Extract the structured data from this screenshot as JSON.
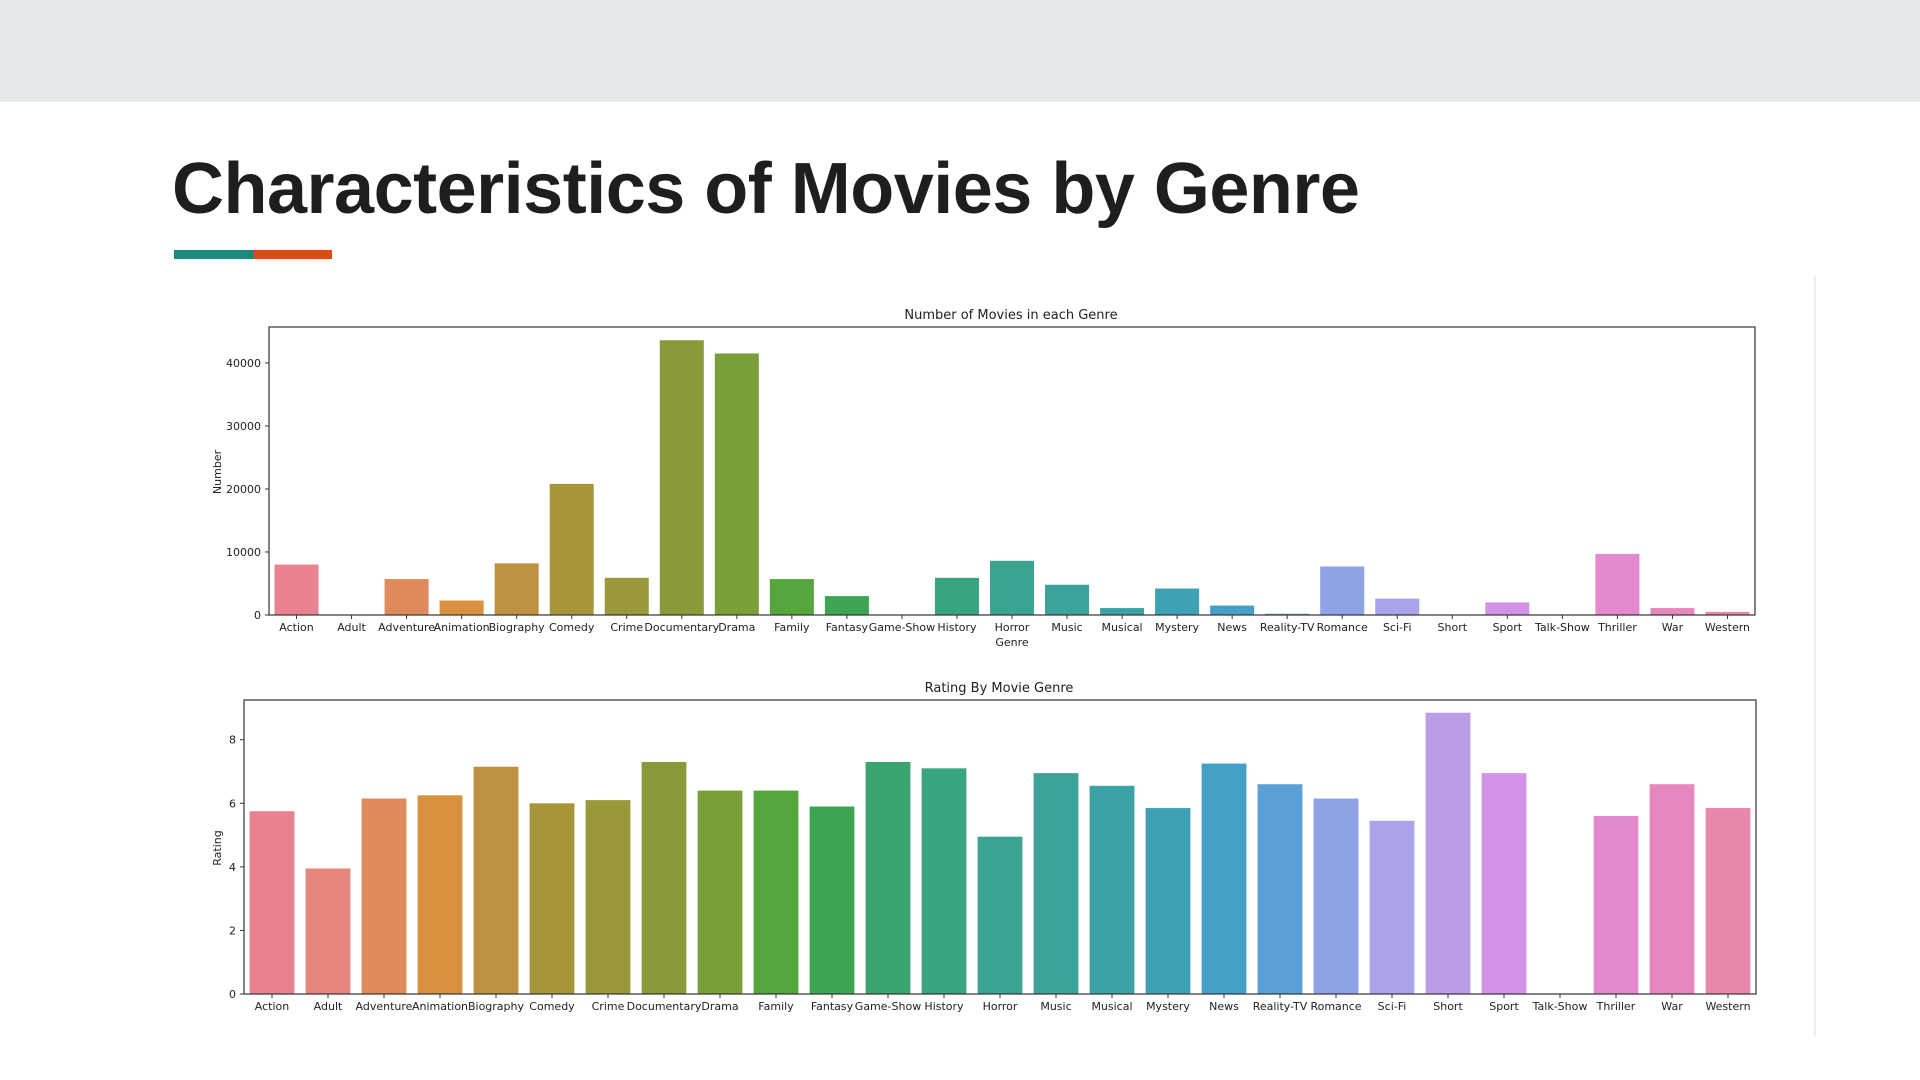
{
  "slide": {
    "title": "Characteristics of Movies by Genre",
    "accent_colors": [
      "#1a8a7a",
      "#e04a10"
    ]
  },
  "chart_data": [
    {
      "type": "bar",
      "title": "Number of Movies in each Genre",
      "xlabel": "Genre",
      "ylabel": "Number",
      "ylim": [
        0,
        45700
      ],
      "yticks": [
        0,
        10000,
        20000,
        30000,
        40000
      ],
      "grid": false,
      "categories": [
        "Action",
        "Adult",
        "Adventure",
        "Animation",
        "Biography",
        "Comedy",
        "Crime",
        "Documentary",
        "Drama",
        "Family",
        "Fantasy",
        "Game-Show",
        "History",
        "Horror",
        "Music",
        "Musical",
        "Mystery",
        "News",
        "Reality-TV",
        "Romance",
        "Sci-Fi",
        "Short",
        "Sport",
        "Talk-Show",
        "Thriller",
        "War",
        "Western"
      ],
      "values": [
        8000,
        0,
        5700,
        2300,
        8200,
        20800,
        5900,
        43600,
        41500,
        5700,
        3000,
        0,
        5900,
        8600,
        4800,
        1100,
        4200,
        1500,
        200,
        7700,
        2600,
        0,
        2000,
        0,
        9700,
        1100,
        500
      ],
      "colors": [
        "#e8828f",
        "#e6857a",
        "#df8a5b",
        "#d8913f",
        "#bc9141",
        "#a8953a",
        "#99983a",
        "#8a9a3a",
        "#7a9e3a",
        "#56a53d",
        "#3da553",
        "#3aa56e",
        "#3aa482",
        "#3ca390",
        "#3ca39a",
        "#3da2a6",
        "#3fa1b4",
        "#45a0c8",
        "#5a9fd6",
        "#8ea3e6",
        "#a9a3ec",
        "#bb9ce6",
        "#d292e6",
        "#e089d8",
        "#e389cf",
        "#e686be",
        "#e887ac"
      ]
    },
    {
      "type": "bar",
      "title": "Rating By Movie Genre",
      "xlabel": "",
      "ylabel": "Rating",
      "ylim": [
        0,
        9.25
      ],
      "yticks": [
        0,
        2,
        4,
        6,
        8
      ],
      "grid": false,
      "categories": [
        "Action",
        "Adult",
        "Adventure",
        "Animation",
        "Biography",
        "Comedy",
        "Crime",
        "Documentary",
        "Drama",
        "Family",
        "Fantasy",
        "Game-Show",
        "History",
        "Horror",
        "Music",
        "Musical",
        "Mystery",
        "News",
        "Reality-TV",
        "Romance",
        "Sci-Fi",
        "Short",
        "Sport",
        "Talk-Show",
        "Thriller",
        "War",
        "Western"
      ],
      "values": [
        5.75,
        3.95,
        6.15,
        6.25,
        7.15,
        6.0,
        6.1,
        7.3,
        6.4,
        6.4,
        5.9,
        7.3,
        7.1,
        4.95,
        6.95,
        6.55,
        5.85,
        7.25,
        6.6,
        6.15,
        5.45,
        8.85,
        6.95,
        0,
        5.6,
        6.6,
        5.85
      ],
      "colors": [
        "#e8828f",
        "#e6857a",
        "#df8a5b",
        "#d8913f",
        "#bc9141",
        "#a8953a",
        "#99983a",
        "#8a9a3a",
        "#7a9e3a",
        "#56a53d",
        "#3da553",
        "#3aa56e",
        "#3aa482",
        "#3ca390",
        "#3ca39a",
        "#3da2a6",
        "#3fa1b4",
        "#45a0c8",
        "#5a9fd6",
        "#8ea3e6",
        "#a9a3ec",
        "#bb9ce6",
        "#d292e6",
        "#e089d8",
        "#e389cf",
        "#e686be",
        "#e887ac"
      ]
    }
  ]
}
